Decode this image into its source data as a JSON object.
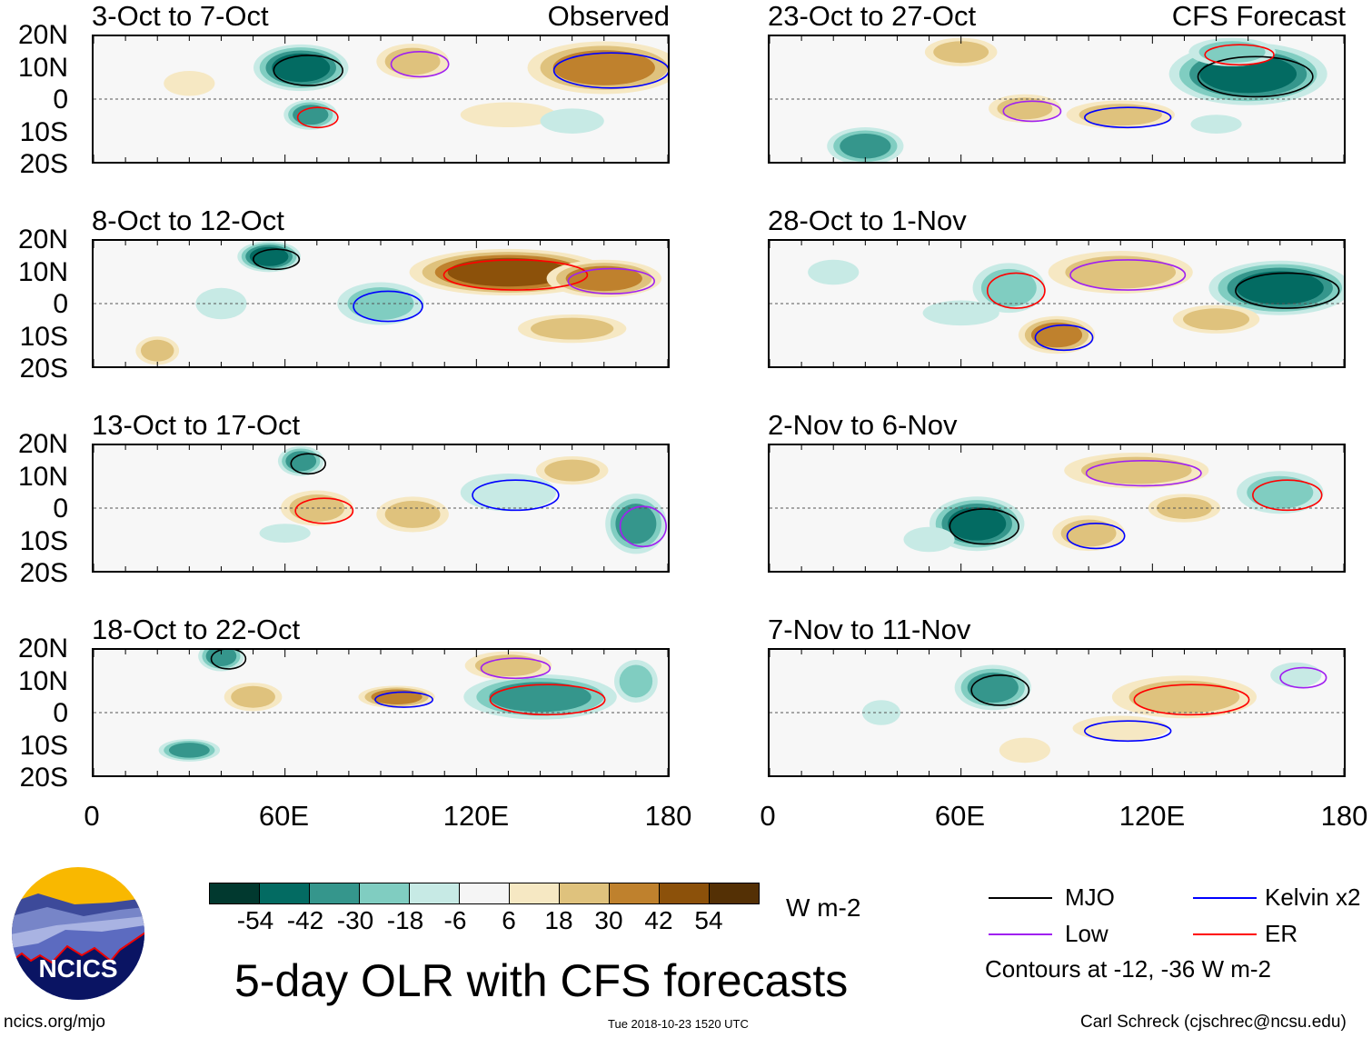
{
  "chart_data": {
    "type": "heatmap",
    "title": "5-day OLR with CFS forecasts",
    "units": "W m-2",
    "x_ticks": [
      "0",
      "60E",
      "120E",
      "180"
    ],
    "y_ticks": [
      "20N",
      "10N",
      "0",
      "10S",
      "20S"
    ],
    "xlim": [
      0,
      180
    ],
    "ylim": [
      -20,
      20
    ],
    "colorbar": {
      "levels": [
        "-54",
        "-42",
        "-30",
        "-18",
        "-6",
        "6",
        "18",
        "30",
        "42",
        "54"
      ],
      "colors": [
        "#01392f",
        "#036b62",
        "#35968c",
        "#80cdc1",
        "#c7eae5",
        "#f5f5f5",
        "#f6e8c3",
        "#dfc27d",
        "#bf812d",
        "#8c510a",
        "#543005"
      ]
    },
    "panels": [
      {
        "title": "3-Oct to 7-Oct",
        "label": "Observed",
        "column": "left"
      },
      {
        "title": "8-Oct to 12-Oct",
        "label": "",
        "column": "left"
      },
      {
        "title": "13-Oct to 17-Oct",
        "label": "",
        "column": "left"
      },
      {
        "title": "18-Oct to 22-Oct",
        "label": "",
        "column": "left"
      },
      {
        "title": "23-Oct to 27-Oct",
        "label": "CFS Forecast",
        "column": "right"
      },
      {
        "title": "28-Oct to 1-Nov",
        "label": "",
        "column": "right"
      },
      {
        "title": "2-Nov to 6-Nov",
        "label": "",
        "column": "right"
      },
      {
        "title": "7-Nov to 11-Nov",
        "label": "",
        "column": "right"
      }
    ],
    "legend": [
      {
        "name": "MJO",
        "color": "#000000"
      },
      {
        "name": "Kelvin x2",
        "color": "#0000ff"
      },
      {
        "name": "Low",
        "color": "#a020f0"
      },
      {
        "name": "ER",
        "color": "#ff0000"
      }
    ],
    "contour_note": "Contours at -12, -36 W m-2"
  },
  "footer": {
    "logo_text": "NCICS",
    "url": "ncics.org/mjo",
    "timestamp": "Tue 2018-10-23 1520 UTC",
    "author": "Carl Schreck (cjschrec@ncsu.edu)"
  }
}
